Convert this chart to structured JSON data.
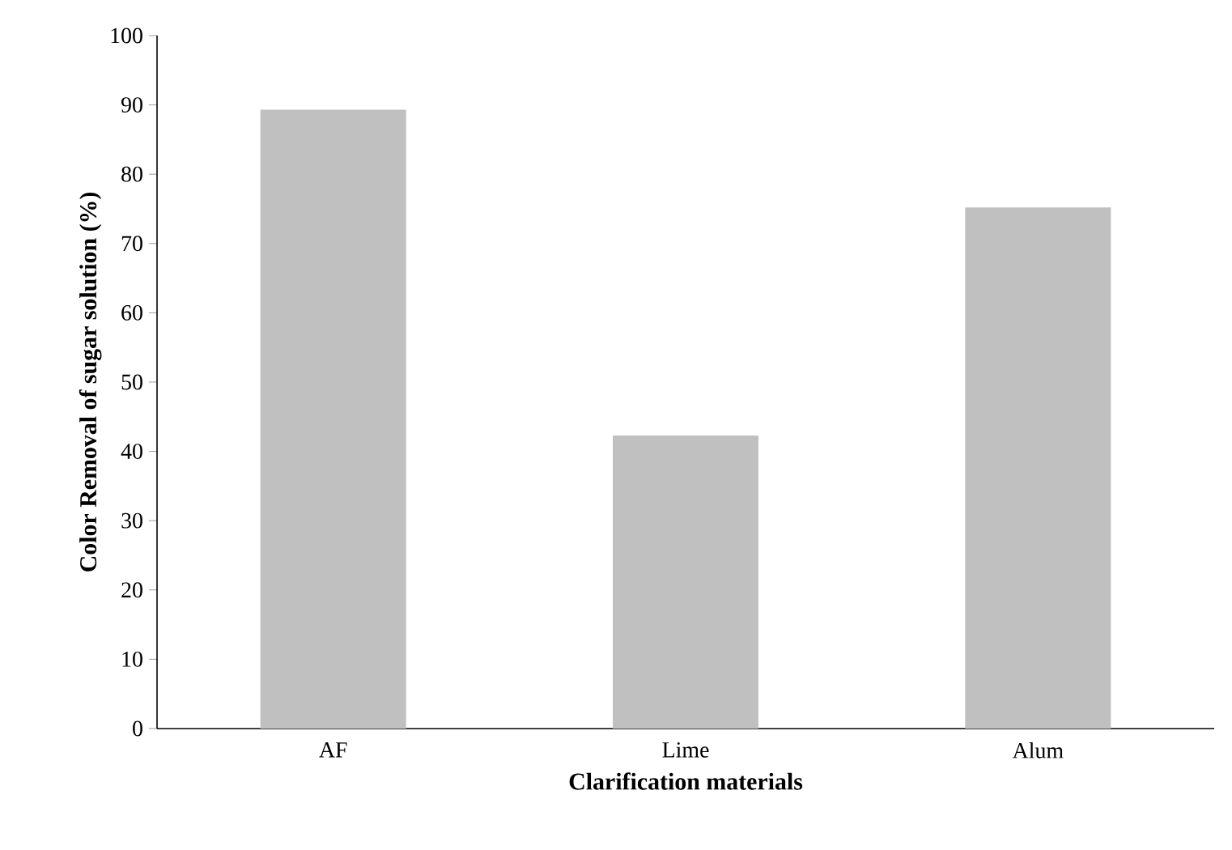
{
  "chart_data": {
    "type": "bar",
    "xlabel": "Clarification materials",
    "ylabel": "Color Removal of sugar solution (%)",
    "categories": [
      "AF",
      "Lime",
      "Alum"
    ],
    "values": [
      89.3,
      42.3,
      75.2
    ],
    "color": "#c0c0c0",
    "ylim": [
      0,
      100
    ],
    "yticks": [
      0,
      10,
      20,
      30,
      40,
      50,
      60,
      70,
      80,
      90,
      100
    ],
    "grid": false
  }
}
